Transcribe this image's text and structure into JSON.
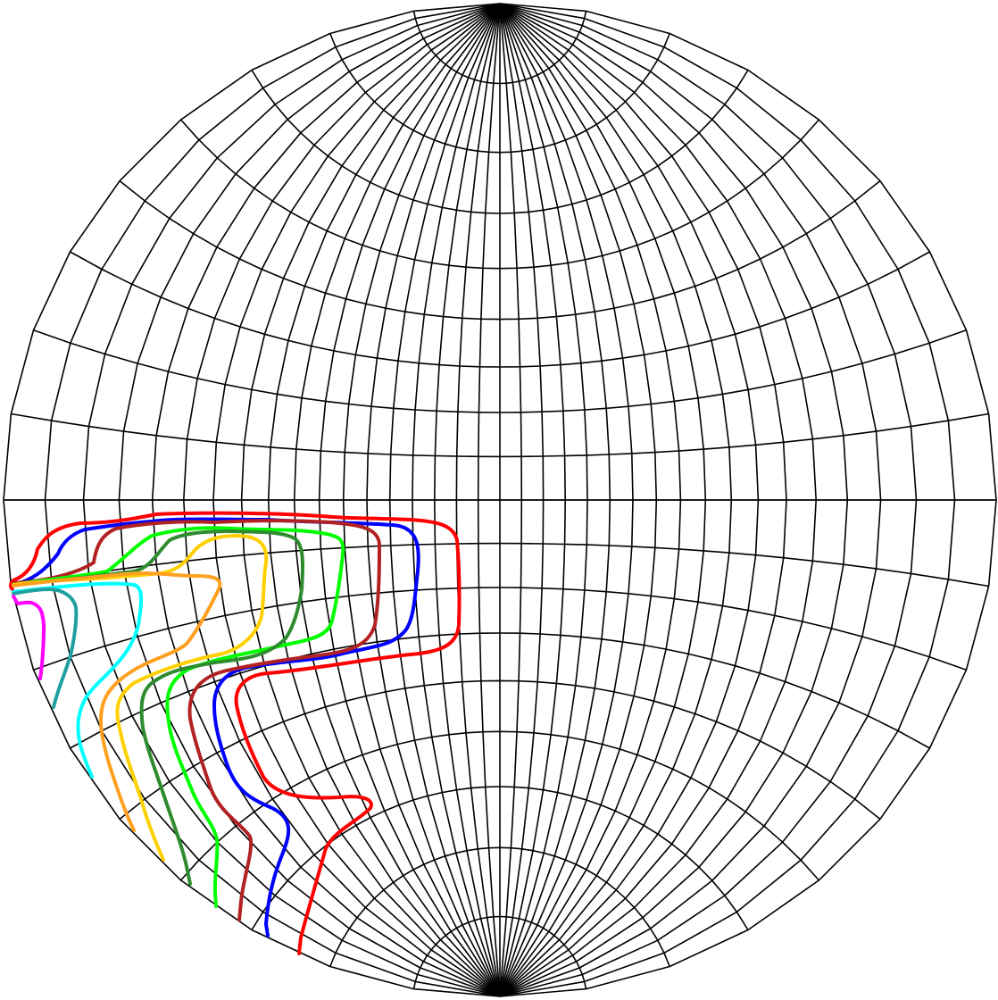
{
  "figure": {
    "kind": "stereographic-projection-net",
    "grid_color": "#000000",
    "meridian_step_deg": 10,
    "parallel_step_deg": 10
  },
  "traces": [
    {
      "name": "red-trace",
      "color": "#ff0000"
    },
    {
      "name": "blue-trace",
      "color": "#0000ff"
    },
    {
      "name": "brown-trace",
      "color": "#b22222"
    },
    {
      "name": "green-trace",
      "color": "#00ff00"
    },
    {
      "name": "dark-green-trace",
      "color": "#2e8b2e"
    },
    {
      "name": "gold-trace",
      "color": "#ffd000"
    },
    {
      "name": "orange-trace",
      "color": "#ffa020"
    },
    {
      "name": "cyan-trace",
      "color": "#00ffff"
    },
    {
      "name": "teal-trace",
      "color": "#20a0a0"
    },
    {
      "name": "magenta-trace",
      "color": "#ff00ff"
    }
  ]
}
